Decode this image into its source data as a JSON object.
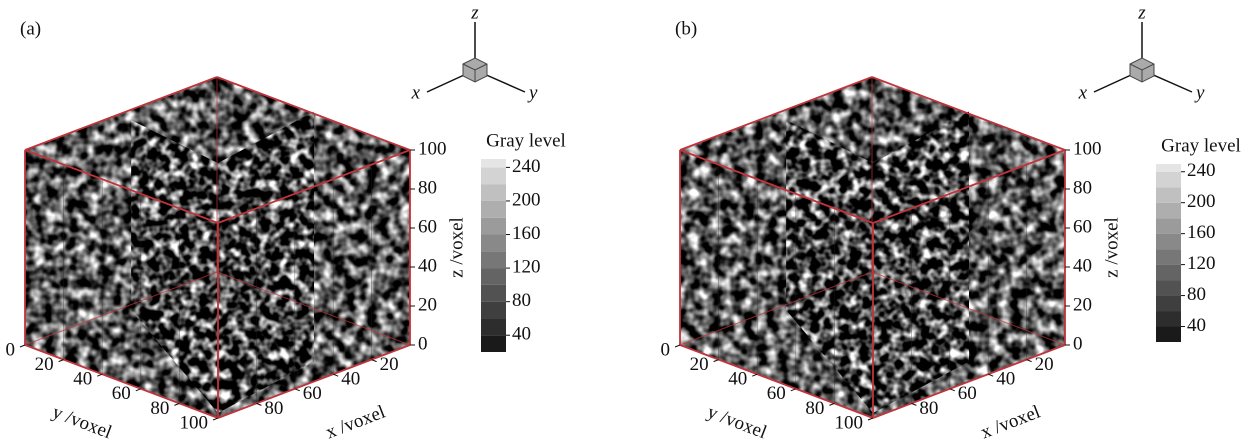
{
  "panels": [
    {
      "label": "(a)",
      "triad": {
        "x": "x",
        "y": "y",
        "z": "z"
      },
      "axes": {
        "x": {
          "title": "x /voxel",
          "lim": [
            0,
            100
          ],
          "ticks": [
            20,
            40,
            60,
            80
          ]
        },
        "y": {
          "title": "y /voxel",
          "lim": [
            0,
            100
          ],
          "ticks": [
            0,
            20,
            40,
            60,
            80,
            100
          ]
        },
        "z": {
          "title": "z /voxel",
          "lim": [
            0,
            100
          ],
          "ticks": [
            0,
            20,
            40,
            60,
            80,
            100
          ]
        }
      },
      "colorbar": {
        "title": "Gray level",
        "lim": [
          20,
          250
        ],
        "ticks": [
          40,
          80,
          120,
          160,
          200,
          240
        ]
      }
    },
    {
      "label": "(b)",
      "triad": {
        "x": "x",
        "y": "y",
        "z": "z"
      },
      "axes": {
        "x": {
          "title": "x /voxel",
          "lim": [
            0,
            100
          ],
          "ticks": [
            20,
            40,
            60,
            80
          ]
        },
        "y": {
          "title": "y /voxel",
          "lim": [
            0,
            100
          ],
          "ticks": [
            0,
            20,
            40,
            60,
            80,
            100
          ]
        },
        "z": {
          "title": "z /voxel",
          "lim": [
            0,
            100
          ],
          "ticks": [
            0,
            20,
            40,
            60,
            80,
            100
          ]
        }
      },
      "colorbar": {
        "title": "Gray level",
        "lim": [
          20,
          250
        ],
        "ticks": [
          40,
          80,
          120,
          160,
          200,
          240
        ]
      }
    }
  ]
}
